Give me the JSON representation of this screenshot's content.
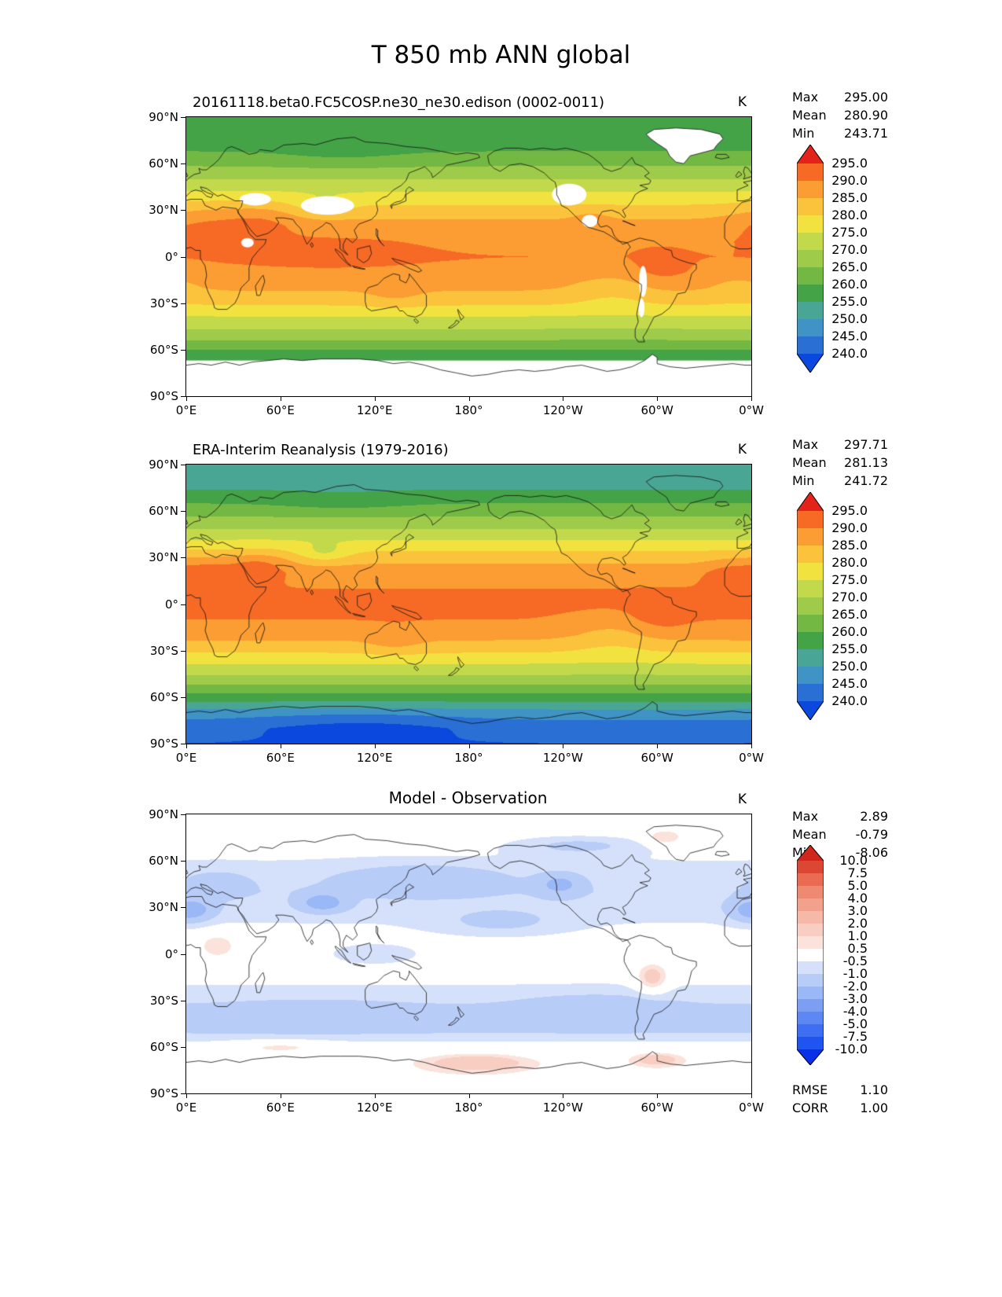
{
  "page_title": "T 850 mb ANN global",
  "stats_labels": {
    "max": "Max",
    "mean": "Mean",
    "min": "Min",
    "rmse": "RMSE",
    "corr": "CORR"
  },
  "axes": {
    "x_tick_labels": [
      "0°E",
      "60°E",
      "120°E",
      "180°",
      "120°W",
      "60°W",
      "0°W"
    ],
    "y_tick_labels": [
      "90°N",
      "60°N",
      "30°N",
      "0°",
      "30°S",
      "60°S",
      "90°S"
    ]
  },
  "chart_data": [
    {
      "type": "heatmap",
      "title": "20161118.beta0.FC5COSP.ne30_ne30.edison (0002-0011)",
      "units": "K",
      "stats": {
        "max": "295.00",
        "mean": "280.90",
        "min": "243.71"
      },
      "x_tick_labels": [
        "0°E",
        "60°E",
        "120°E",
        "180°",
        "120°W",
        "60°W",
        "0°W"
      ],
      "y_tick_labels": [
        "90°N",
        "60°N",
        "30°N",
        "0°",
        "30°S",
        "60°S",
        "90°S"
      ],
      "colorbar": {
        "labels": [
          "295.0",
          "290.0",
          "285.0",
          "280.0",
          "275.0",
          "270.0",
          "265.0",
          "260.0",
          "255.0",
          "250.0",
          "245.0",
          "240.0"
        ],
        "levels": [
          240,
          245,
          250,
          255,
          260,
          265,
          270,
          275,
          280,
          285,
          290,
          295
        ],
        "palette": [
          "#0b48dd",
          "#2a6fd3",
          "#3f93c5",
          "#4aa694",
          "#44a247",
          "#72b843",
          "#9fcb4a",
          "#c2d94b",
          "#f2e23f",
          "#fbc33c",
          "#fb9d32",
          "#f66a25",
          "#e3231a"
        ]
      },
      "field": {
        "lats": [
          -90,
          -80,
          -70,
          -60,
          -50,
          -40,
          -30,
          -20,
          -10,
          0,
          10,
          20,
          30,
          40,
          50,
          60,
          70,
          80,
          90
        ],
        "zonal": [
          246,
          248,
          253,
          260,
          268,
          274,
          281,
          286,
          289,
          290,
          289,
          287,
          282,
          276,
          270,
          264,
          259,
          256,
          255
        ],
        "anomalies": [
          {
            "lat": 22,
            "lon": 15,
            "amp": 4,
            "rlat": 14,
            "rlon": 30
          },
          {
            "lat": 23,
            "lon": 48,
            "amp": 4,
            "rlat": 12,
            "rlon": 22
          },
          {
            "lat": 5,
            "lon": 90,
            "amp": 2,
            "rlat": 12,
            "rlon": 60
          },
          {
            "lat": -8,
            "lon": 302,
            "amp": 3,
            "rlat": 12,
            "rlon": 18
          },
          {
            "lat": 22,
            "lon": 258,
            "amp": 3,
            "rlat": 8,
            "rlon": 12
          },
          {
            "lat": -25,
            "lon": 133,
            "amp": 2.5,
            "rlat": 9,
            "rlon": 18
          },
          {
            "lat": -20,
            "lon": 272,
            "amp": -3.5,
            "rlat": 14,
            "rlon": 30
          },
          {
            "lat": -18,
            "lon": 352,
            "amp": -2.5,
            "rlat": 12,
            "rlon": 20
          },
          {
            "lat": 33,
            "lon": 88,
            "amp": -5,
            "rlat": 6,
            "rlon": 16
          },
          {
            "lat": 65,
            "lon": 100,
            "amp": -2,
            "rlat": 8,
            "rlon": 45
          }
        ],
        "masked": {
          "lat_below": -67,
          "polygons": [
            "antarctica",
            "greenland"
          ],
          "ellipses": [
            {
              "lat": 33,
              "lon": 90,
              "rlat": 6,
              "rlon": 17
            },
            {
              "lat": 37,
              "lon": 44,
              "rlat": 4,
              "rlon": 10
            },
            {
              "lat": 40,
              "lon": 244,
              "rlat": 7,
              "rlon": 11
            },
            {
              "lat": 23,
              "lon": 257,
              "rlat": 4,
              "rlon": 5
            },
            {
              "lat": -16,
              "lon": 291,
              "rlat": 10,
              "rlon": 2.5
            },
            {
              "lat": -33,
              "lon": 290,
              "rlat": 6,
              "rlon": 2
            },
            {
              "lat": 9,
              "lon": 39,
              "rlat": 3,
              "rlon": 4
            }
          ]
        }
      }
    },
    {
      "type": "heatmap",
      "title": "ERA-Interim Reanalysis (1979-2016)",
      "units": "K",
      "stats": {
        "max": "297.71",
        "mean": "281.13",
        "min": "241.72"
      },
      "x_tick_labels": [
        "0°E",
        "60°E",
        "120°E",
        "180°",
        "120°W",
        "60°W",
        "0°W"
      ],
      "y_tick_labels": [
        "90°N",
        "60°N",
        "30°N",
        "0°",
        "30°S",
        "60°S",
        "90°S"
      ],
      "colorbar": {
        "labels": [
          "295.0",
          "290.0",
          "285.0",
          "280.0",
          "275.0",
          "270.0",
          "265.0",
          "260.0",
          "255.0",
          "250.0",
          "245.0",
          "240.0"
        ],
        "levels": [
          240,
          245,
          250,
          255,
          260,
          265,
          270,
          275,
          280,
          285,
          290,
          295
        ],
        "palette": [
          "#0b48dd",
          "#2a6fd3",
          "#3f93c5",
          "#4aa694",
          "#44a247",
          "#72b843",
          "#9fcb4a",
          "#c2d94b",
          "#f2e23f",
          "#fbc33c",
          "#fb9d32",
          "#f66a25",
          "#e3231a"
        ]
      },
      "field": {
        "lats": [
          -90,
          -80,
          -70,
          -60,
          -50,
          -40,
          -30,
          -20,
          -10,
          0,
          10,
          20,
          30,
          40,
          50,
          60,
          70,
          80,
          90
        ],
        "zonal": [
          240,
          242,
          248,
          258,
          267,
          274,
          281,
          287,
          290,
          291,
          290,
          288,
          283,
          276,
          269,
          263,
          257,
          252,
          250
        ],
        "anomalies": [
          {
            "lat": 20,
            "lon": 12,
            "amp": 6,
            "rlat": 10,
            "rlon": 25
          },
          {
            "lat": 24,
            "lon": 46,
            "amp": 6,
            "rlat": 9,
            "rlon": 18
          },
          {
            "lat": 18,
            "lon": 345,
            "amp": 4,
            "rlat": 9,
            "rlon": 15
          },
          {
            "lat": -8,
            "lon": 302,
            "amp": 3,
            "rlat": 12,
            "rlon": 18
          },
          {
            "lat": -24,
            "lon": 133,
            "amp": 3,
            "rlat": 9,
            "rlon": 18
          },
          {
            "lat": -20,
            "lon": 272,
            "amp": -3.5,
            "rlat": 14,
            "rlon": 30
          },
          {
            "lat": 33,
            "lon": 88,
            "amp": -6,
            "rlat": 6,
            "rlon": 16
          },
          {
            "lat": 65,
            "lon": 100,
            "amp": -2,
            "rlat": 8,
            "rlon": 45
          },
          {
            "lat": -78,
            "lon": 110,
            "amp": -4,
            "rlat": 9,
            "rlon": 70
          }
        ]
      }
    },
    {
      "type": "heatmap",
      "title": "Model - Observation",
      "units": "K",
      "stats": {
        "max": "2.89",
        "mean": "-0.79",
        "min": "-8.06"
      },
      "metrics": {
        "rmse": "1.10",
        "corr": "1.00"
      },
      "x_tick_labels": [
        "0°E",
        "60°E",
        "120°E",
        "180°",
        "120°W",
        "60°W",
        "0°W"
      ],
      "y_tick_labels": [
        "90°N",
        "60°N",
        "30°N",
        "0°",
        "30°S",
        "60°S",
        "90°S"
      ],
      "colorbar": {
        "labels": [
          "10.0",
          "7.5",
          "5.0",
          "4.0",
          "3.0",
          "2.0",
          "1.0",
          "0.5",
          "-0.5",
          "-1.0",
          "-2.0",
          "-3.0",
          "-4.0",
          "-5.0",
          "-7.5",
          "-10.0"
        ],
        "levels": [
          -10,
          -7.5,
          -5,
          -4,
          -3,
          -2,
          -1,
          -0.5,
          0.5,
          1,
          2,
          3,
          4,
          5,
          7.5,
          10
        ],
        "palette": [
          "#0a2fe8",
          "#1f54f0",
          "#3e6ff2",
          "#5d87f2",
          "#7c9f f4",
          "#9ab7f6",
          "#b8ccf8",
          "#d5e1fa",
          "#ffffff",
          "#fbe3dc",
          "#f9cec2",
          "#f6b8a7",
          "#f2a18c",
          "#ee8a71",
          "#e86b52",
          "#dc4733",
          "#d0261c"
        ]
      },
      "field": {
        "lats": [
          -90,
          -80,
          -70,
          -60,
          -50,
          -40,
          -30,
          -20,
          -10,
          0,
          10,
          20,
          30,
          40,
          50,
          60,
          70,
          80,
          90
        ],
        "zonal": [
          0.2,
          0.4,
          0.2,
          -0.2,
          -1.1,
          -1.3,
          -0.9,
          -0.5,
          -0.3,
          -0.3,
          -0.3,
          -0.5,
          -0.8,
          -0.9,
          -0.7,
          -0.5,
          -0.3,
          -0.1,
          0.0
        ],
        "anomalies": [
          {
            "lat": 28,
            "lon": 2,
            "amp": -2.2,
            "rlat": 7,
            "rlon": 14
          },
          {
            "lat": 45,
            "lon": 20,
            "amp": -0.9,
            "rlat": 8,
            "rlon": 20
          },
          {
            "lat": 33,
            "lon": 87,
            "amp": -2.0,
            "rlat": 6,
            "rlon": 14
          },
          {
            "lat": 48,
            "lon": 150,
            "amp": -1.2,
            "rlat": 9,
            "rlon": 50
          },
          {
            "lat": 45,
            "lon": 238,
            "amp": -1.6,
            "rlat": 7,
            "rlon": 14
          },
          {
            "lat": 70,
            "lon": 250,
            "amp": -0.9,
            "rlat": 6,
            "rlon": 40
          },
          {
            "lat": -40,
            "lon": 80,
            "amp": -0.7,
            "rlat": 8,
            "rlon": 50
          },
          {
            "lat": -35,
            "lon": 260,
            "amp": -0.8,
            "rlat": 8,
            "rlon": 40
          },
          {
            "lat": 20,
            "lon": 200,
            "amp": -0.7,
            "rlat": 8,
            "rlon": 40
          },
          {
            "lat": 0,
            "lon": 120,
            "amp": -0.6,
            "rlat": 6,
            "rlon": 25
          },
          {
            "lat": -15,
            "lon": 297,
            "amp": 1.8,
            "rlat": 9,
            "rlon": 10
          },
          {
            "lat": 5,
            "lon": 20,
            "amp": 1.3,
            "rlat": 8,
            "rlon": 12
          },
          {
            "lat": -70,
            "lon": 185,
            "amp": 1.8,
            "rlat": 5,
            "rlon": 30
          },
          {
            "lat": -68,
            "lon": 300,
            "amp": 1.6,
            "rlat": 4,
            "rlon": 15
          },
          {
            "lat": 75,
            "lon": 305,
            "amp": 1.2,
            "rlat": 5,
            "rlon": 12
          },
          {
            "lat": -60,
            "lon": 60,
            "amp": 0.8,
            "rlat": 4,
            "rlon": 30
          }
        ]
      }
    }
  ]
}
